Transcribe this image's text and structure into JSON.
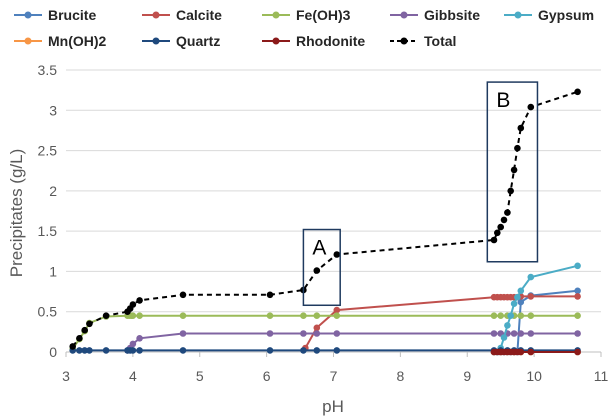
{
  "chart_data": {
    "type": "scatter",
    "title": "",
    "xlabel": "pH",
    "ylabel": "Precipitates (g/L)",
    "xlim": [
      3,
      11
    ],
    "ylim": [
      0,
      3.5
    ],
    "xticks": [
      "3",
      "4",
      "5",
      "6",
      "7",
      "8",
      "9",
      "10",
      "11"
    ],
    "yticks": [
      "0",
      "0.5",
      "1",
      "1.5",
      "2",
      "2.5",
      "3",
      "3.5"
    ],
    "grid": "horizontal",
    "legend_position": "top",
    "annotations": [
      {
        "label": "A",
        "x_range": [
          6.55,
          7.1
        ],
        "y_range": [
          0.58,
          1.52
        ]
      },
      {
        "label": "B",
        "x_range": [
          9.3,
          10.05
        ],
        "y_range": [
          1.12,
          3.35
        ]
      }
    ],
    "series": [
      {
        "name": "Brucite",
        "color": "#4F81BD",
        "dashed": false,
        "points": [
          [
            9.4,
            0
          ],
          [
            9.45,
            0
          ],
          [
            9.5,
            0
          ],
          [
            9.55,
            0
          ],
          [
            9.6,
            0
          ],
          [
            9.65,
            0
          ],
          [
            9.7,
            0
          ],
          [
            9.75,
            0
          ],
          [
            9.8,
            0.62
          ],
          [
            9.95,
            0.7
          ],
          [
            10.65,
            0.76
          ]
        ]
      },
      {
        "name": "Calcite",
        "color": "#C0504D",
        "dashed": false,
        "points": [
          [
            6.58,
            0.05
          ],
          [
            6.75,
            0.3
          ],
          [
            7.05,
            0.52
          ],
          [
            9.4,
            0.68
          ],
          [
            9.45,
            0.68
          ],
          [
            9.5,
            0.68
          ],
          [
            9.55,
            0.68
          ],
          [
            9.6,
            0.68
          ],
          [
            9.65,
            0.68
          ],
          [
            9.7,
            0.68
          ],
          [
            9.75,
            0.68
          ],
          [
            9.8,
            0.69
          ],
          [
            9.95,
            0.69
          ],
          [
            10.65,
            0.69
          ]
        ]
      },
      {
        "name": "Fe(OH)3",
        "color": "#9BBB59",
        "dashed": false,
        "points": [
          [
            3.1,
            0.04
          ],
          [
            3.2,
            0.16
          ],
          [
            3.28,
            0.26
          ],
          [
            3.35,
            0.36
          ],
          [
            3.6,
            0.44
          ],
          [
            3.92,
            0.45
          ],
          [
            3.95,
            0.45
          ],
          [
            3.98,
            0.45
          ],
          [
            4.0,
            0.45
          ],
          [
            4.1,
            0.45
          ],
          [
            4.75,
            0.45
          ],
          [
            6.05,
            0.45
          ],
          [
            6.55,
            0.45
          ],
          [
            6.75,
            0.45
          ],
          [
            7.05,
            0.45
          ],
          [
            9.4,
            0.45
          ],
          [
            9.5,
            0.45
          ],
          [
            9.6,
            0.45
          ],
          [
            9.7,
            0.45
          ],
          [
            9.8,
            0.45
          ],
          [
            9.95,
            0.45
          ],
          [
            10.65,
            0.45
          ]
        ]
      },
      {
        "name": "Gibbsite",
        "color": "#8064A2",
        "dashed": false,
        "points": [
          [
            3.92,
            0.02
          ],
          [
            3.96,
            0.05
          ],
          [
            4.0,
            0.1
          ],
          [
            4.1,
            0.17
          ],
          [
            4.75,
            0.23
          ],
          [
            6.05,
            0.23
          ],
          [
            6.55,
            0.23
          ],
          [
            6.75,
            0.23
          ],
          [
            7.05,
            0.23
          ],
          [
            9.4,
            0.23
          ],
          [
            9.5,
            0.23
          ],
          [
            9.6,
            0.23
          ],
          [
            9.7,
            0.23
          ],
          [
            9.8,
            0.23
          ],
          [
            9.95,
            0.23
          ],
          [
            10.65,
            0.23
          ]
        ]
      },
      {
        "name": "Gypsum",
        "color": "#4BACC6",
        "dashed": false,
        "points": [
          [
            9.4,
            0
          ],
          [
            9.45,
            0
          ],
          [
            9.5,
            0.05
          ],
          [
            9.55,
            0.18
          ],
          [
            9.6,
            0.33
          ],
          [
            9.65,
            0.45
          ],
          [
            9.7,
            0.6
          ],
          [
            9.75,
            0.68
          ],
          [
            9.8,
            0.76
          ],
          [
            9.95,
            0.93
          ],
          [
            10.65,
            1.07
          ]
        ]
      },
      {
        "name": "Mn(OH)2",
        "color": "#F79646",
        "dashed": false,
        "points": [
          [
            9.4,
            0
          ],
          [
            9.5,
            0
          ],
          [
            9.6,
            0
          ],
          [
            9.7,
            0
          ],
          [
            9.8,
            0
          ],
          [
            9.95,
            0
          ],
          [
            10.65,
            0
          ]
        ]
      },
      {
        "name": "Quartz",
        "color": "#1F497D",
        "dashed": false,
        "points": [
          [
            3.1,
            0.02
          ],
          [
            3.2,
            0.02
          ],
          [
            3.28,
            0.02
          ],
          [
            3.35,
            0.02
          ],
          [
            3.6,
            0.02
          ],
          [
            3.92,
            0.02
          ],
          [
            3.96,
            0.02
          ],
          [
            4.0,
            0.02
          ],
          [
            4.1,
            0.02
          ],
          [
            4.75,
            0.02
          ],
          [
            6.05,
            0.02
          ],
          [
            6.55,
            0.02
          ],
          [
            6.75,
            0.02
          ],
          [
            7.05,
            0.02
          ],
          [
            9.4,
            0.02
          ],
          [
            9.5,
            0.02
          ],
          [
            9.6,
            0.02
          ],
          [
            9.7,
            0.02
          ],
          [
            9.8,
            0.02
          ],
          [
            9.95,
            0.02
          ],
          [
            10.65,
            0.02
          ]
        ]
      },
      {
        "name": "Rhodonite",
        "color": "#8B1A1A",
        "dashed": false,
        "points": [
          [
            9.4,
            0
          ],
          [
            9.45,
            0
          ],
          [
            9.5,
            0
          ],
          [
            9.55,
            0
          ],
          [
            9.6,
            0
          ],
          [
            9.65,
            0
          ],
          [
            9.7,
            0
          ],
          [
            9.75,
            0
          ],
          [
            9.8,
            0
          ],
          [
            9.95,
            0
          ],
          [
            10.65,
            0
          ]
        ]
      },
      {
        "name": "Total",
        "color": "#000000",
        "dashed": true,
        "points": [
          [
            3.1,
            0.07
          ],
          [
            3.2,
            0.17
          ],
          [
            3.28,
            0.27
          ],
          [
            3.35,
            0.35
          ],
          [
            3.6,
            0.45
          ],
          [
            3.92,
            0.5
          ],
          [
            3.96,
            0.54
          ],
          [
            4.0,
            0.59
          ],
          [
            4.1,
            0.64
          ],
          [
            4.75,
            0.71
          ],
          [
            6.05,
            0.71
          ],
          [
            6.55,
            0.77
          ],
          [
            6.75,
            1.01
          ],
          [
            7.05,
            1.21
          ],
          [
            9.4,
            1.39
          ],
          [
            9.45,
            1.48
          ],
          [
            9.5,
            1.55
          ],
          [
            9.55,
            1.64
          ],
          [
            9.6,
            1.73
          ],
          [
            9.65,
            2.0
          ],
          [
            9.7,
            2.26
          ],
          [
            9.75,
            2.53
          ],
          [
            9.8,
            2.78
          ],
          [
            9.95,
            3.04
          ],
          [
            10.65,
            3.23
          ]
        ]
      }
    ]
  }
}
